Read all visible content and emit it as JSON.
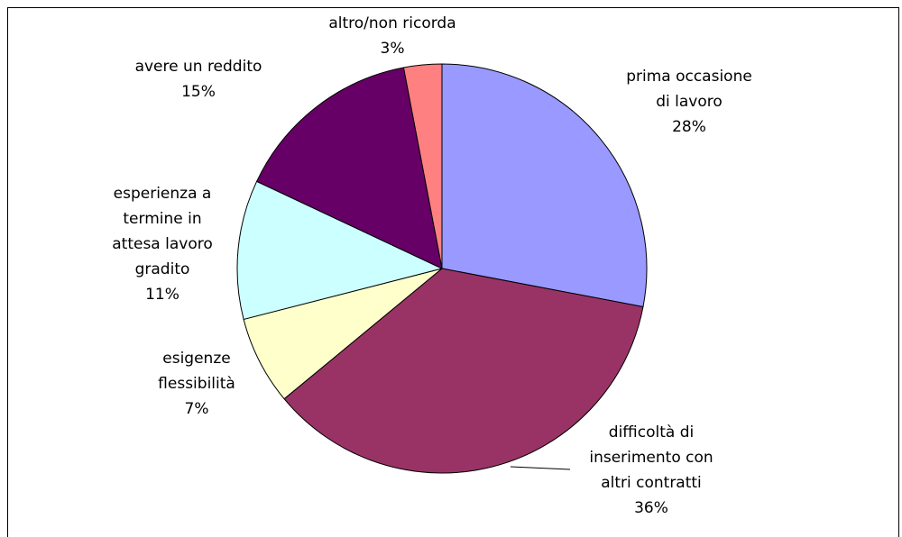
{
  "chart_data": {
    "type": "pie",
    "categories": [
      [
        "prima occasione",
        "di lavoro"
      ],
      [
        "difficoltà di",
        "inserimento con",
        "altri contratti"
      ],
      [
        "esigenze",
        "flessibilità"
      ],
      [
        "esperienza a",
        "termine in",
        "attesa lavoro",
        "gradito"
      ],
      [
        "avere un reddito"
      ],
      [
        "altro/non ricorda"
      ]
    ],
    "values": [
      28,
      36,
      7,
      11,
      15,
      3
    ],
    "value_labels": [
      "28%",
      "36%",
      "7%",
      "11%",
      "15%",
      "3%"
    ],
    "colors": [
      "#9999ff",
      "#993366",
      "#ffffcc",
      "#ccffff",
      "#660066",
      "#ff8080"
    ]
  }
}
